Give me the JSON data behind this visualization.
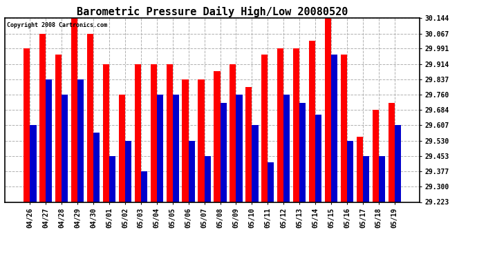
{
  "title": "Barometric Pressure Daily High/Low 20080520",
  "copyright": "Copyright 2008 Cartronics.com",
  "dates": [
    "04/26",
    "04/27",
    "04/28",
    "04/29",
    "04/30",
    "05/01",
    "05/02",
    "05/03",
    "05/04",
    "05/05",
    "05/06",
    "05/07",
    "05/08",
    "05/09",
    "05/10",
    "05/11",
    "05/12",
    "05/13",
    "05/14",
    "05/15",
    "05/16",
    "05/17",
    "05/18",
    "05/19"
  ],
  "highs": [
    29.991,
    30.067,
    29.96,
    30.144,
    30.067,
    29.914,
    29.76,
    29.914,
    29.914,
    29.914,
    29.837,
    29.837,
    29.88,
    29.914,
    29.8,
    29.96,
    29.991,
    29.991,
    30.029,
    30.144,
    29.96,
    29.55,
    29.684,
    29.72
  ],
  "lows": [
    29.607,
    29.837,
    29.76,
    29.837,
    29.57,
    29.453,
    29.53,
    29.377,
    29.76,
    29.76,
    29.53,
    29.453,
    29.72,
    29.76,
    29.607,
    29.423,
    29.76,
    29.72,
    29.66,
    29.96,
    29.53,
    29.453,
    29.453,
    29.607
  ],
  "high_color": "#ff0000",
  "low_color": "#0000cc",
  "background_color": "#ffffff",
  "grid_color": "#b0b0b0",
  "ylim_min": 29.223,
  "ylim_max": 30.144,
  "yticks": [
    29.223,
    29.3,
    29.377,
    29.453,
    29.53,
    29.607,
    29.684,
    29.76,
    29.837,
    29.914,
    29.991,
    30.067,
    30.144
  ],
  "bar_width": 0.4,
  "title_fontsize": 11,
  "tick_fontsize": 7,
  "figwidth": 6.9,
  "figheight": 3.75,
  "dpi": 100
}
